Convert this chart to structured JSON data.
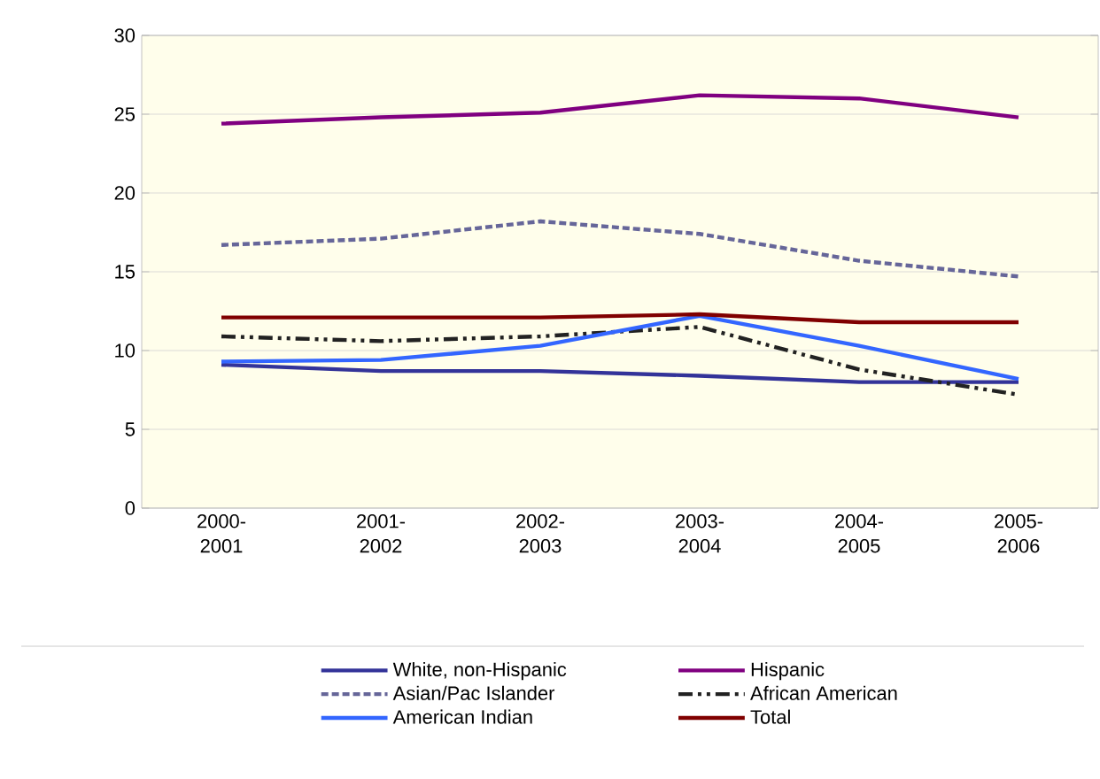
{
  "chart_data": {
    "type": "line",
    "categories": [
      "2000-2001",
      "2001-2002",
      "2002-2003",
      "2003-2004",
      "2004-2005",
      "2005-2006"
    ],
    "series": [
      {
        "name": "White, non-Hispanic",
        "color": "#333399",
        "line_style": "solid",
        "values": [
          9.1,
          8.7,
          8.7,
          8.4,
          8.0,
          8.0
        ]
      },
      {
        "name": "Hispanic",
        "color": "#800080",
        "line_style": "solid",
        "values": [
          24.4,
          24.8,
          25.1,
          26.2,
          26.0,
          24.8
        ]
      },
      {
        "name": "Asian/Pac Islander",
        "color": "#666699",
        "line_style": "dashed",
        "values": [
          16.7,
          17.1,
          18.2,
          17.4,
          15.7,
          14.7
        ]
      },
      {
        "name": "African American",
        "color": "#222222",
        "line_style": "dashdot",
        "values": [
          10.9,
          10.6,
          10.9,
          11.5,
          8.8,
          7.2
        ]
      },
      {
        "name": "American Indian",
        "color": "#3366ff",
        "line_style": "solid",
        "values": [
          9.3,
          9.4,
          10.3,
          12.2,
          10.3,
          8.2
        ]
      },
      {
        "name": "Total",
        "color": "#800000",
        "line_style": "solid",
        "values": [
          12.1,
          12.1,
          12.1,
          12.3,
          11.8,
          11.8
        ]
      }
    ],
    "ylim": [
      0,
      30
    ],
    "yticks": [
      0,
      5,
      10,
      15,
      20,
      25,
      30
    ],
    "grid": "y",
    "legend": "bottom",
    "marker": "none"
  }
}
